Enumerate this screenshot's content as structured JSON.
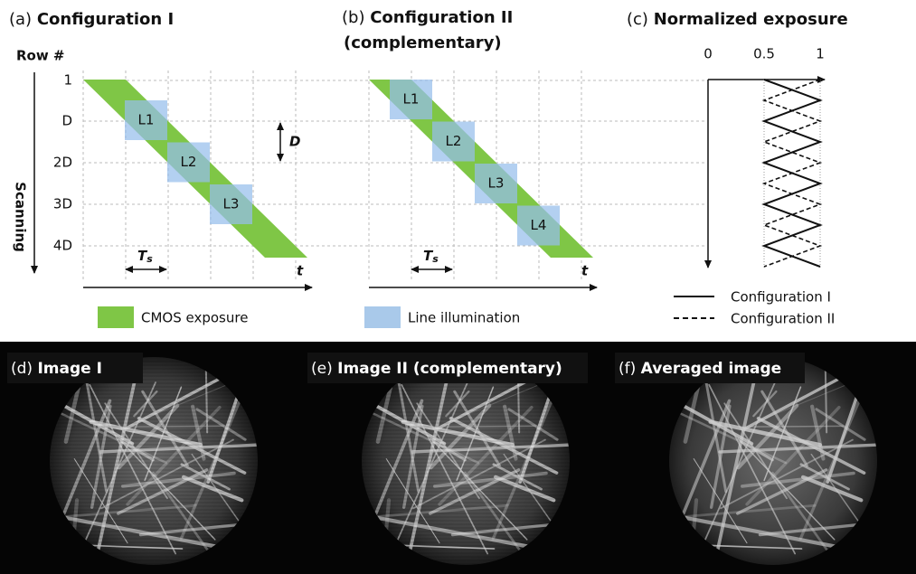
{
  "panels": {
    "a": {
      "label": "(a)",
      "title": "Configuration I",
      "blocks": [
        "L1",
        "L2",
        "L3"
      ]
    },
    "b": {
      "label": "(b)",
      "title": "Configuration II",
      "subtitle": "(complementary)",
      "blocks": [
        "L1",
        "L2",
        "L3",
        "L4"
      ]
    },
    "c": {
      "label": "(c)",
      "title": "Normalized exposure",
      "ticks": [
        "0",
        "0.5",
        "1"
      ]
    }
  },
  "rows": {
    "title": "Row #",
    "labels": [
      "1",
      "D",
      "2D",
      "3D",
      "4D"
    ]
  },
  "axis": {
    "scanning": "Scanning",
    "time": "t",
    "period": {
      "main": "T",
      "sub": "s"
    },
    "spacing": "D"
  },
  "legend": {
    "exposure": "CMOS exposure",
    "illumination": "Line illumination",
    "config1": "Configuration I",
    "config2": "Configuration II"
  },
  "images": [
    {
      "label": "(d)",
      "title": "Image I"
    },
    {
      "label": "(e)",
      "title": "Image II (complementary)"
    },
    {
      "label": "(f)",
      "title": "Averaged image"
    }
  ]
}
